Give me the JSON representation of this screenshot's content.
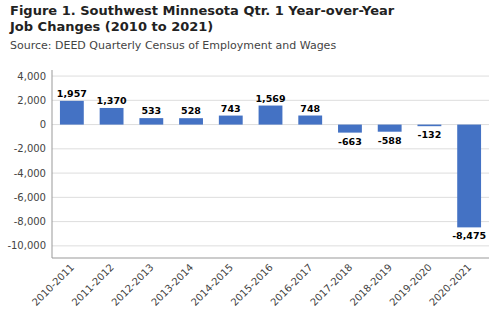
{
  "chart_data": {
    "type": "bar",
    "title": [
      "Figure 1. Southwest Minnesota Qtr. 1 Year-over-Year",
      "Job Changes (2010 to 2021)"
    ],
    "source": "Source: DEED Quarterly Census of Employment and Wages",
    "categories": [
      "2010-2011",
      "2011-2012",
      "2012-2013",
      "2013-2014",
      "2014-2015",
      "2015-2016",
      "2016-2017",
      "2017-2018",
      "2018-2019",
      "2019-2020",
      "2020-2021"
    ],
    "values": [
      1957,
      1370,
      533,
      528,
      743,
      1569,
      748,
      -663,
      -588,
      -132,
      -8475
    ],
    "value_labels": [
      "1,957",
      "1,370",
      "533",
      "528",
      "743",
      "1,569",
      "748",
      "-663",
      "-588",
      "-132",
      "-8,475"
    ],
    "data_labels": true,
    "color": "#4472c4",
    "ylim": [
      -11000,
      4500
    ],
    "yticks": [
      {
        "value": -10000,
        "label": "-10,000"
      },
      {
        "value": -8000,
        "label": "-8,000"
      },
      {
        "value": -6000,
        "label": "-6,000"
      },
      {
        "value": -4000,
        "label": "-4,000"
      },
      {
        "value": -2000,
        "label": "-2,000"
      },
      0,
      {
        "value": 2000,
        "label": "2,000"
      },
      {
        "value": 4000,
        "label": "4,000"
      }
    ],
    "grid": true
  }
}
